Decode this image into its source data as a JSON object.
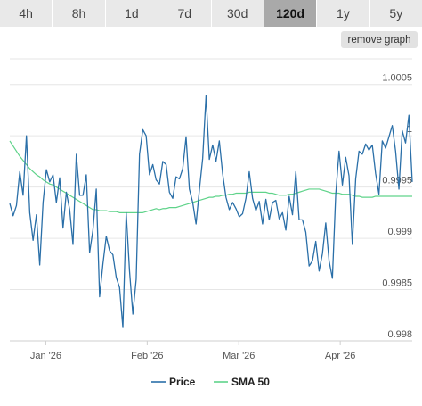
{
  "range_tabs": [
    {
      "label": "4h",
      "active": false
    },
    {
      "label": "8h",
      "active": false
    },
    {
      "label": "1d",
      "active": false
    },
    {
      "label": "7d",
      "active": false
    },
    {
      "label": "30d",
      "active": false
    },
    {
      "label": "120d",
      "active": true
    },
    {
      "label": "1y",
      "active": false
    },
    {
      "label": "5y",
      "active": false
    }
  ],
  "remove_graph_label": "remove graph",
  "chart_data": {
    "type": "line",
    "title": "",
    "xlabel": "",
    "ylabel": "",
    "x_start": "2025-12-21",
    "x_end": "2026-04-23",
    "x_ticks": [
      {
        "label": "Jan '26",
        "date": "2026-01-01"
      },
      {
        "label": "Feb '26",
        "date": "2026-02-01"
      },
      {
        "label": "Mar '26",
        "date": "2026-03-01"
      },
      {
        "label": "Apr '26",
        "date": "2026-04-01"
      }
    ],
    "ylim": [
      0.998,
      1.00075
    ],
    "y_ticks": [
      0.998,
      0.9985,
      0.999,
      0.9995,
      1,
      1.0005
    ],
    "y_tick_labels": [
      "0.998",
      "0.9985",
      "0.999",
      "0.9995",
      "1",
      "1.0005"
    ],
    "grid": true,
    "legend_position": "bottom",
    "series": [
      {
        "name": "Price",
        "color": "#2a6fa8",
        "values": [
          0.99934,
          0.99922,
          0.99932,
          0.99965,
          0.99942,
          1.0,
          0.99925,
          0.99898,
          0.99923,
          0.99874,
          0.99935,
          0.99967,
          0.99955,
          0.99962,
          0.99935,
          0.99959,
          0.9991,
          0.99945,
          0.99928,
          0.99894,
          0.99982,
          0.99942,
          0.99942,
          0.99962,
          0.99886,
          0.99908,
          0.99948,
          0.99843,
          0.99875,
          0.99902,
          0.99888,
          0.99884,
          0.99862,
          0.99852,
          0.99813,
          0.99925,
          0.99868,
          0.99826,
          0.9986,
          0.99982,
          1.00006,
          1.0,
          0.99962,
          0.99972,
          0.99957,
          0.99953,
          0.99975,
          0.99972,
          0.99945,
          0.99939,
          0.9996,
          0.99958,
          0.99968,
          0.99999,
          0.99948,
          0.99935,
          0.99914,
          0.99947,
          0.99978,
          1.00039,
          0.99977,
          0.99991,
          0.99975,
          0.99995,
          0.99963,
          0.9994,
          0.99928,
          0.99935,
          0.99929,
          0.99921,
          0.99924,
          0.99939,
          0.99965,
          0.99939,
          0.99927,
          0.99936,
          0.99914,
          0.99938,
          0.99918,
          0.99935,
          0.99937,
          0.99919,
          0.99925,
          0.99908,
          0.99941,
          0.99923,
          0.99965,
          0.99918,
          0.99918,
          0.99906,
          0.99873,
          0.99878,
          0.99897,
          0.99868,
          0.99885,
          0.99915,
          0.99878,
          0.99861,
          0.99943,
          0.99985,
          0.99952,
          0.99979,
          0.99961,
          0.99894,
          0.99958,
          0.99985,
          0.99982,
          0.99992,
          0.99986,
          0.99991,
          0.99963,
          0.99943,
          0.99995,
          0.99988,
          0.99999,
          1.0001,
          0.99985,
          0.99948,
          1.00005,
          0.99993,
          1.0002,
          0.99955
        ]
      },
      {
        "name": "SMA 50",
        "color": "#5fd38a",
        "values": [
          0.99995,
          0.9999,
          0.99985,
          0.9998,
          0.99976,
          0.99972,
          0.99968,
          0.99965,
          0.99962,
          0.9996,
          0.99957,
          0.99955,
          0.99953,
          0.99952,
          0.9995,
          0.99948,
          0.99946,
          0.99944,
          0.99942,
          0.9994,
          0.99938,
          0.99936,
          0.99934,
          0.99932,
          0.9993,
          0.99928,
          0.99928,
          0.99927,
          0.99927,
          0.99927,
          0.99926,
          0.99926,
          0.99926,
          0.99925,
          0.99925,
          0.99925,
          0.99925,
          0.99925,
          0.99925,
          0.99925,
          0.99925,
          0.99926,
          0.99927,
          0.99928,
          0.99929,
          0.99928,
          0.99929,
          0.99929,
          0.9993,
          0.9993,
          0.9993,
          0.99931,
          0.99932,
          0.99933,
          0.99934,
          0.99935,
          0.99936,
          0.99937,
          0.99938,
          0.99939,
          0.9994,
          0.9994,
          0.99941,
          0.99941,
          0.99942,
          0.99942,
          0.99943,
          0.99943,
          0.99944,
          0.99944,
          0.99944,
          0.99944,
          0.99945,
          0.99945,
          0.99945,
          0.99945,
          0.99945,
          0.99945,
          0.99944,
          0.99944,
          0.99943,
          0.99942,
          0.99942,
          0.99942,
          0.99943,
          0.99943,
          0.99944,
          0.99945,
          0.99946,
          0.99947,
          0.99948,
          0.99948,
          0.99948,
          0.99948,
          0.99947,
          0.99946,
          0.99945,
          0.99944,
          0.99944,
          0.99944,
          0.99943,
          0.99943,
          0.99943,
          0.99942,
          0.99941,
          0.99941,
          0.9994,
          0.9994,
          0.9994,
          0.9994,
          0.99941,
          0.99941,
          0.99941,
          0.99941,
          0.99941,
          0.99941,
          0.99941,
          0.99941,
          0.99941,
          0.99941,
          0.99941,
          0.99941
        ]
      }
    ]
  }
}
